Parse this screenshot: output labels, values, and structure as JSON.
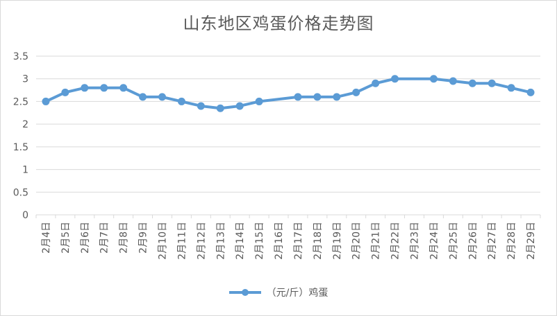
{
  "chart_data": {
    "type": "line",
    "title": "山东地区鸡蛋价格走势图",
    "xlabel": "",
    "ylabel": "",
    "categories": [
      "2月4日",
      "2月5日",
      "2月6日",
      "2月7日",
      "2月8日",
      "2月9日",
      "2月10日",
      "2月11日",
      "2月12日",
      "2月13日",
      "2月14日",
      "2月15日",
      "2月16日",
      "2月17日",
      "2月18日",
      "2月19日",
      "2月20日",
      "2月21日",
      "2月22日",
      "2月23日",
      "2月24日",
      "2月25日",
      "2月26日",
      "2月27日",
      "2月28日",
      "2月29日"
    ],
    "series": [
      {
        "name": "（元/斤）鸡蛋",
        "values": [
          2.5,
          2.7,
          2.8,
          2.8,
          2.8,
          2.6,
          2.6,
          2.5,
          2.4,
          2.35,
          2.4,
          2.5,
          null,
          2.6,
          2.6,
          2.6,
          2.7,
          2.9,
          3.0,
          null,
          3.0,
          2.95,
          2.9,
          2.9,
          2.8,
          2.7
        ]
      }
    ],
    "ylim": [
      0,
      3.5
    ],
    "yticks": [
      0,
      0.5,
      1,
      1.5,
      2,
      2.5,
      3,
      3.5
    ],
    "ytick_labels": [
      "0",
      "0.5",
      "1",
      "1.5",
      "2",
      "2.5",
      "3",
      "3.5"
    ],
    "grid": true,
    "legend_position": "bottom",
    "line_color": "#5b9bd5"
  }
}
